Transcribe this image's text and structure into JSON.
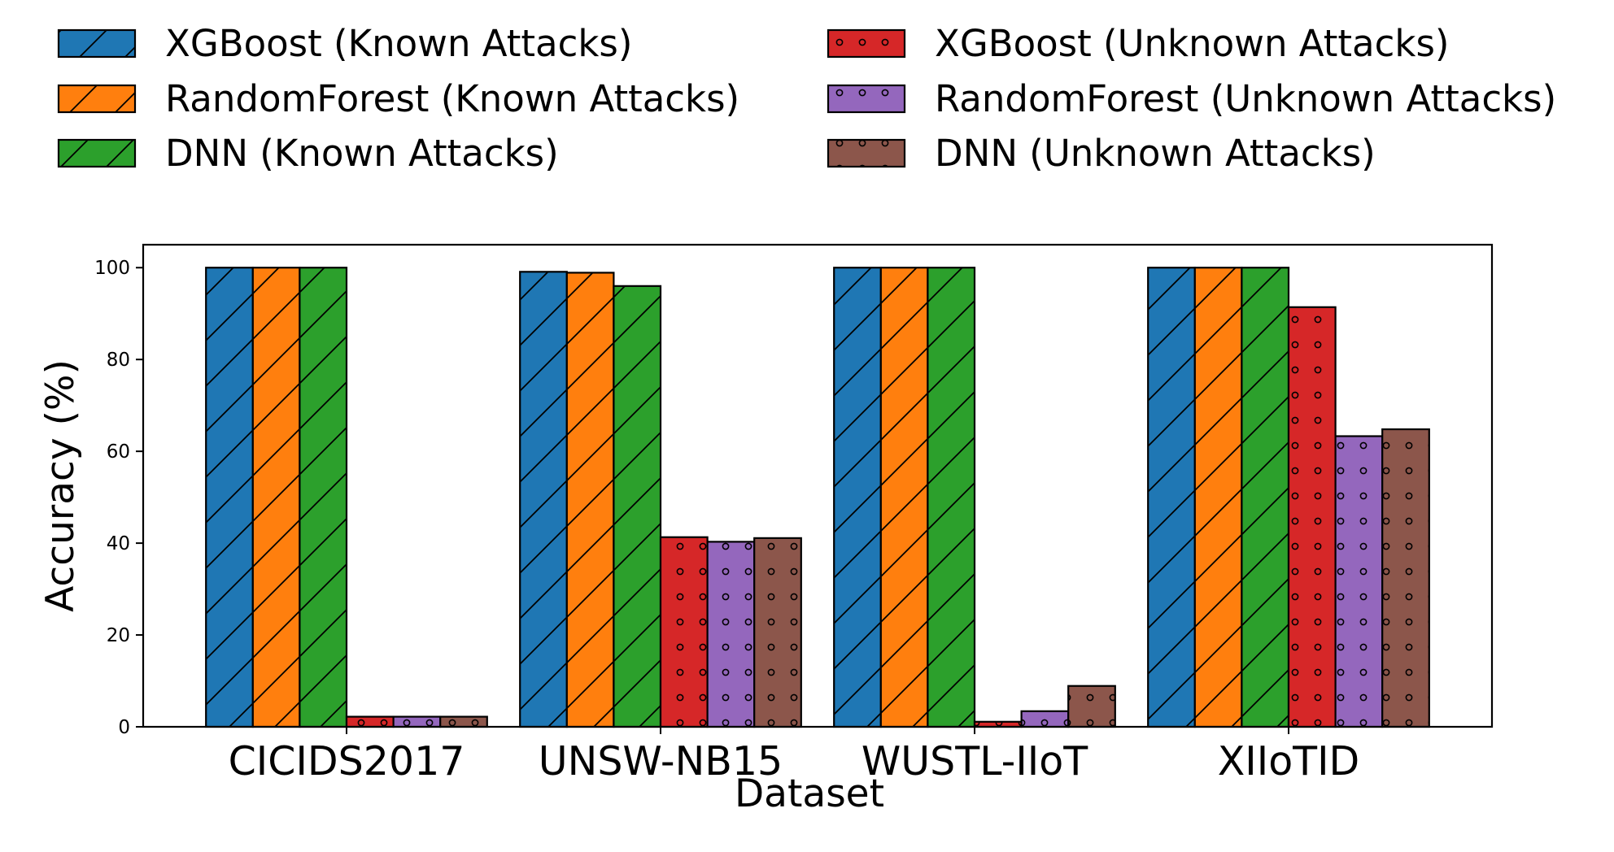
{
  "chart_data": {
    "type": "bar",
    "xlabel": "Dataset",
    "ylabel": "Accuracy (%)",
    "ylim": [
      0,
      105
    ],
    "yticks": [
      0,
      20,
      40,
      60,
      80,
      100
    ],
    "grid": false,
    "legend_placement": "top, outside plot, two columns",
    "categories": [
      "CICIDS2017",
      "UNSW-NB15",
      "WUSTL-IIoT",
      "XIIoTID"
    ],
    "series": [
      {
        "name": "XGBoost (Known Attacks)",
        "color": "#1f77b4",
        "hatch": "diagonal",
        "values": [
          100,
          99.1,
          100,
          100
        ]
      },
      {
        "name": "RandomForest (Known Attacks)",
        "color": "#ff7f0e",
        "hatch": "diagonal",
        "values": [
          100,
          98.9,
          100,
          100
        ]
      },
      {
        "name": "DNN (Known Attacks)",
        "color": "#2ca02c",
        "hatch": "diagonal",
        "values": [
          100,
          96,
          100,
          100
        ]
      },
      {
        "name": "XGBoost (Unknown Attacks)",
        "color": "#d62728",
        "hatch": "dots",
        "values": [
          2.2,
          41.3,
          1.1,
          91.4
        ]
      },
      {
        "name": "RandomForest (Unknown Attacks)",
        "color": "#9467bd",
        "hatch": "dots",
        "values": [
          2.2,
          40.3,
          3.4,
          63.3
        ]
      },
      {
        "name": "DNN (Unknown Attacks)",
        "color": "#8c564b",
        "hatch": "dots",
        "values": [
          2.2,
          41.1,
          8.9,
          64.8
        ]
      }
    ]
  }
}
